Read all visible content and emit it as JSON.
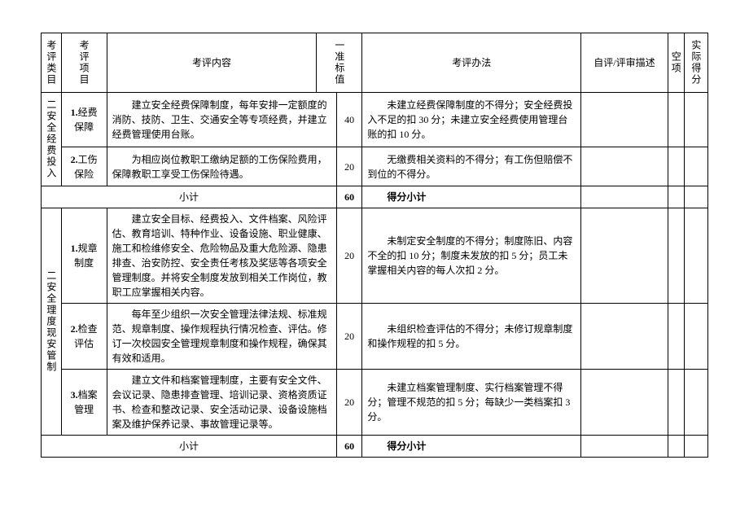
{
  "headers": {
    "category": "考评类目",
    "item": "考评项目",
    "content": "考评内容",
    "standard": "一准标值",
    "method": "考评办法",
    "self": "自评/评审描述",
    "blank": "空项",
    "score": "实际得分"
  },
  "sections": [
    {
      "category": "二安全经费投入",
      "rows": [
        {
          "no": "1.",
          "name": "经费保障",
          "content": "建立安全经费保障制度，每年安排一定额度的消防、技防、卫生、交通安全等专项经费，并建立经费管理使用台账。",
          "value": "40",
          "method": "未建立经费保障制度的不得分；安全经费投入不足的扣 30 分；未建立安全经费使用管理台账的扣 10 分。"
        },
        {
          "no": "2.",
          "name": "工伤保险",
          "content": "为相应岗位教职工缴纳足额的工伤保险费用，保障教职工享受工伤保险待遇。",
          "value": "20",
          "method": "无缴费相关资料的不得分；有工伤但赔偿不到位的不得分。"
        }
      ],
      "subtotal_label": "小计",
      "subtotal_value": "60",
      "subtotal_score": "得分小计"
    },
    {
      "category": "二安全理度现安管制",
      "rows": [
        {
          "no": "1.",
          "name": "规章制度",
          "content": "建立安全目标、经费投入、文件档案、风险评估、教育培训、特种作业、设备设施、职业健康、施工和检维修安全、危险物品及重大危险源、隐患排查、治安防控、安全责任考核及奖惩等各项安全管理制度。并将安全制度发放到相关工作岗位，教职工应掌握相关内容。",
          "value": "20",
          "method": "未制定安全制度的不得分；制度陈旧、内容不全的扣 10 分；制度未发放的扣 5 分；员工未掌握相关内容的每人次扣 2 分。"
        },
        {
          "no": "2.",
          "name": "检查评估",
          "content": "每年至少组织一次安全管理法律法规、标准规范、规章制度、操作规程执行情况检查、评估。修订一次校园安全管理规章制度和操作规程，确保其有效和适用。",
          "value": "20",
          "method": "未组织检查评估的不得分；未修订规章制度和操作规程的扣 5 分。"
        },
        {
          "no": "3.",
          "name": "档案管理",
          "content": "建立文件和档案管理制度，主要有安全文件、会议记录、隐患排查管理、培训记录、资格资质证书、检查和整改记录、安全活动记录、设备设施档案及维护保养记录、事故管理记录等。",
          "value": "20",
          "method": "未建立档案管理制度、实行档案管理不得分；管理不规范的扣 5 分；每缺少一类档案扣 3 分。"
        }
      ],
      "subtotal_label": "小计",
      "subtotal_value": "60",
      "subtotal_score": "得分小计"
    }
  ]
}
